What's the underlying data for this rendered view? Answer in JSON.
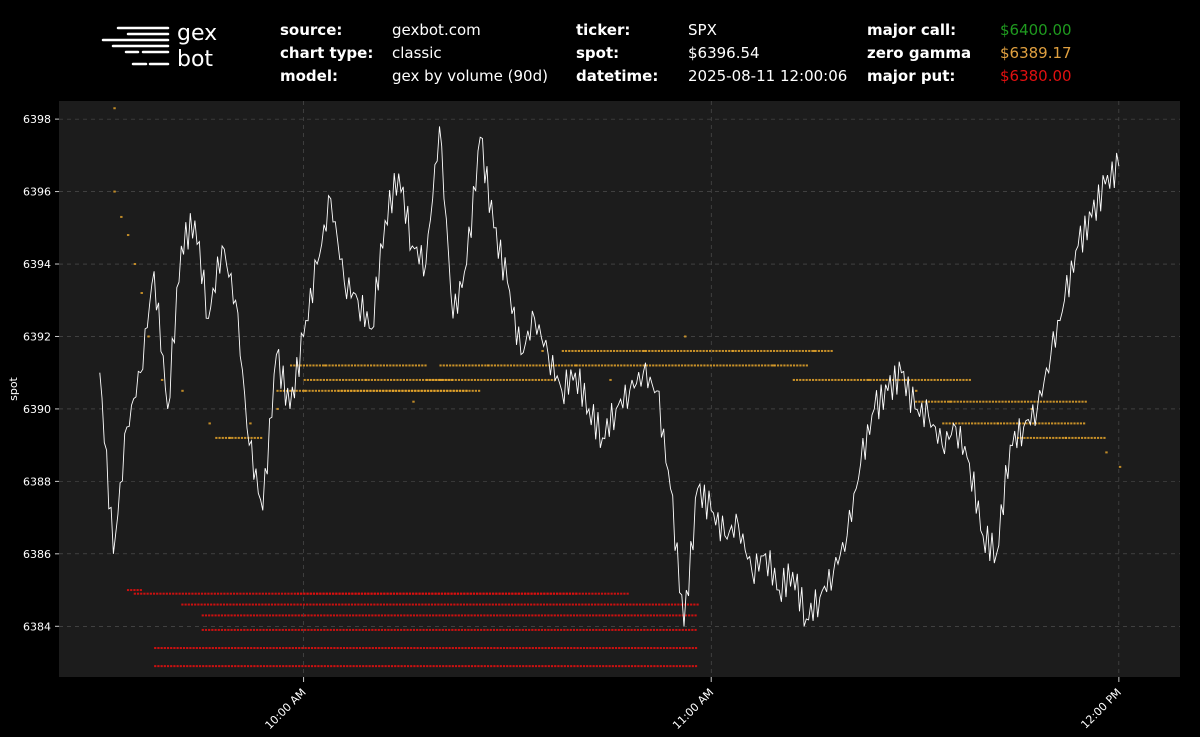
{
  "logo": {
    "line1": "gex",
    "line2": "bot"
  },
  "info": {
    "source_label": "source:",
    "source": "gexbot.com",
    "chart_type_label": "chart type:",
    "chart_type": "classic",
    "model_label": "model:",
    "model": "gex by volume (90d)",
    "ticker_label": "ticker:",
    "ticker": "SPX",
    "spot_label": "spot:",
    "spot": "$6396.54",
    "datetime_label": "datetime:",
    "datetime": "2025-08-11 12:00:06",
    "major_call_label": "major call:",
    "major_call": "$6400.00",
    "zero_gamma_label": "zero gamma",
    "zero_gamma": "$6389.17",
    "major_put_label": "major put:",
    "major_put": "$6380.00"
  },
  "colors": {
    "background": "#000000",
    "plot_background": "#1c1c1c",
    "spot_line": "#ffffff",
    "call_levels": "#e8a62a",
    "put_levels": "#e01010",
    "major_call_text": "#1f9a1f",
    "zero_gamma_text": "#e0a040",
    "major_put_text": "#e01010"
  },
  "chart_data": {
    "type": "line",
    "ylabel": "spot",
    "ylim": [
      6382.6,
      6398.5
    ],
    "yticks": [
      "6384",
      "6386",
      "6388",
      "6390",
      "6392",
      "6394",
      "6396",
      "6398"
    ],
    "xticks": [
      {
        "t": "10:00",
        "label": "10:00 AM"
      },
      {
        "t": "11:00",
        "label": "11:00 AM"
      },
      {
        "t": "12:00",
        "label": "12:00 PM"
      }
    ],
    "x_range": [
      "09:30",
      "12:05"
    ],
    "grid": true,
    "spot_series": {
      "name": "spot",
      "x": [
        "09:30",
        "09:32",
        "09:34",
        "09:36",
        "09:38",
        "09:40",
        "09:42",
        "09:44",
        "09:46",
        "09:48",
        "09:50",
        "09:52",
        "09:54",
        "09:56",
        "09:58",
        "10:00",
        "10:02",
        "10:04",
        "10:06",
        "10:08",
        "10:10",
        "10:12",
        "10:14",
        "10:16",
        "10:18",
        "10:20",
        "10:22",
        "10:24",
        "10:26",
        "10:28",
        "10:30",
        "10:32",
        "10:34",
        "10:36",
        "10:38",
        "10:40",
        "10:42",
        "10:44",
        "10:46",
        "10:48",
        "10:50",
        "10:52",
        "10:54",
        "10:56",
        "10:58",
        "11:00",
        "11:02",
        "11:04",
        "11:06",
        "11:08",
        "11:10",
        "11:12",
        "11:14",
        "11:16",
        "11:18",
        "11:20",
        "11:22",
        "11:24",
        "11:26",
        "11:28",
        "11:30",
        "11:32",
        "11:34",
        "11:36",
        "11:38",
        "11:40",
        "11:42",
        "11:44",
        "11:46",
        "11:48",
        "11:50",
        "11:52",
        "11:54",
        "11:56",
        "11:58",
        "12:00"
      ],
      "y": [
        6391.0,
        6386.0,
        6389.5,
        6391.0,
        6393.8,
        6390.0,
        6394.5,
        6395.2,
        6392.5,
        6394.5,
        6393.0,
        6389.0,
        6387.2,
        6391.5,
        6390.0,
        6392.0,
        6394.0,
        6395.8,
        6393.5,
        6393.0,
        6392.2,
        6395.2,
        6396.5,
        6394.5,
        6394.0,
        6397.8,
        6392.5,
        6394.0,
        6397.5,
        6395.0,
        6393.5,
        6391.5,
        6392.5,
        6391.5,
        6390.5,
        6391.0,
        6390.0,
        6389.2,
        6390.0,
        6390.5,
        6391.0,
        6390.5,
        6387.8,
        6384.0,
        6387.8,
        6387.2,
        6386.5,
        6386.8,
        6385.5,
        6386.0,
        6385.0,
        6385.5,
        6384.2,
        6384.8,
        6385.5,
        6386.5,
        6388.5,
        6390.0,
        6390.5,
        6391.0,
        6390.0,
        6389.8,
        6389.0,
        6389.5,
        6388.5,
        6386.5,
        6386.0,
        6389.0,
        6389.5,
        6390.0,
        6391.5,
        6393.0,
        6394.5,
        6395.3,
        6396.2,
        6396.7
      ]
    },
    "call_level_points": [
      [
        6398.3,
        "09:32"
      ],
      [
        6396.0,
        "09:32"
      ],
      [
        6395.3,
        "09:33"
      ],
      [
        6394.8,
        "09:34"
      ],
      [
        6394.0,
        "09:35"
      ],
      [
        6393.2,
        "09:36"
      ],
      [
        6392.0,
        "09:37"
      ],
      [
        6390.8,
        "09:39"
      ],
      [
        6390.5,
        "09:42"
      ],
      [
        6389.6,
        "09:46"
      ],
      [
        6389.2,
        "09:49"
      ],
      [
        6389.6,
        "09:52"
      ],
      [
        6390.0,
        "09:56"
      ],
      [
        6390.5,
        "10:00"
      ],
      [
        6391.2,
        "10:03"
      ],
      [
        6390.8,
        "10:09"
      ],
      [
        6390.5,
        "10:13"
      ],
      [
        6390.2,
        "10:16"
      ],
      [
        6390.8,
        "10:20"
      ],
      [
        6391.2,
        "10:27"
      ],
      [
        6391.6,
        "10:35"
      ],
      [
        6391.2,
        "10:40"
      ],
      [
        6390.8,
        "10:45"
      ],
      [
        6391.6,
        "10:50"
      ],
      [
        6392.0,
        "10:56"
      ],
      [
        6391.6,
        "11:03"
      ],
      [
        6391.2,
        "11:09"
      ],
      [
        6391.6,
        "11:15"
      ],
      [
        6390.8,
        "11:23"
      ],
      [
        6390.5,
        "11:30"
      ],
      [
        6390.2,
        "11:35"
      ],
      [
        6389.6,
        "11:42"
      ],
      [
        6390.0,
        "11:47"
      ],
      [
        6389.2,
        "11:52"
      ],
      [
        6388.8,
        "11:58"
      ],
      [
        6388.4,
        "12:00"
      ]
    ],
    "call_level_bands": [
      {
        "y": 6391.2,
        "from": "09:58",
        "to": "10:18"
      },
      {
        "y": 6390.8,
        "from": "10:00",
        "to": "10:22"
      },
      {
        "y": 6390.5,
        "from": "10:05",
        "to": "10:24"
      },
      {
        "y": 6391.2,
        "from": "10:20",
        "to": "10:40"
      },
      {
        "y": 6390.8,
        "from": "10:18",
        "to": "10:37"
      },
      {
        "y": 6391.6,
        "from": "10:38",
        "to": "11:18"
      },
      {
        "y": 6391.2,
        "from": "10:40",
        "to": "11:14"
      },
      {
        "y": 6390.8,
        "from": "11:12",
        "to": "11:38"
      },
      {
        "y": 6390.2,
        "from": "11:30",
        "to": "11:55"
      },
      {
        "y": 6389.6,
        "from": "11:34",
        "to": "11:55"
      },
      {
        "y": 6389.2,
        "from": "11:45",
        "to": "11:58"
      },
      {
        "y": 6390.5,
        "from": "09:56",
        "to": "10:26"
      },
      {
        "y": 6389.2,
        "from": "09:47",
        "to": "09:54"
      }
    ],
    "put_level_bands": [
      {
        "y": 6385.0,
        "from": "09:34",
        "to": "09:36"
      },
      {
        "y": 6384.9,
        "from": "09:35",
        "to": "10:48"
      },
      {
        "y": 6384.9,
        "from": "09:59",
        "to": "10:40"
      },
      {
        "y": 6384.6,
        "from": "09:42",
        "to": "10:58"
      },
      {
        "y": 6384.3,
        "from": "09:45",
        "to": "10:58"
      },
      {
        "y": 6383.9,
        "from": "09:45",
        "to": "10:58"
      },
      {
        "y": 6383.4,
        "from": "09:38",
        "to": "10:58"
      },
      {
        "y": 6382.9,
        "from": "09:38",
        "to": "10:58"
      }
    ]
  }
}
